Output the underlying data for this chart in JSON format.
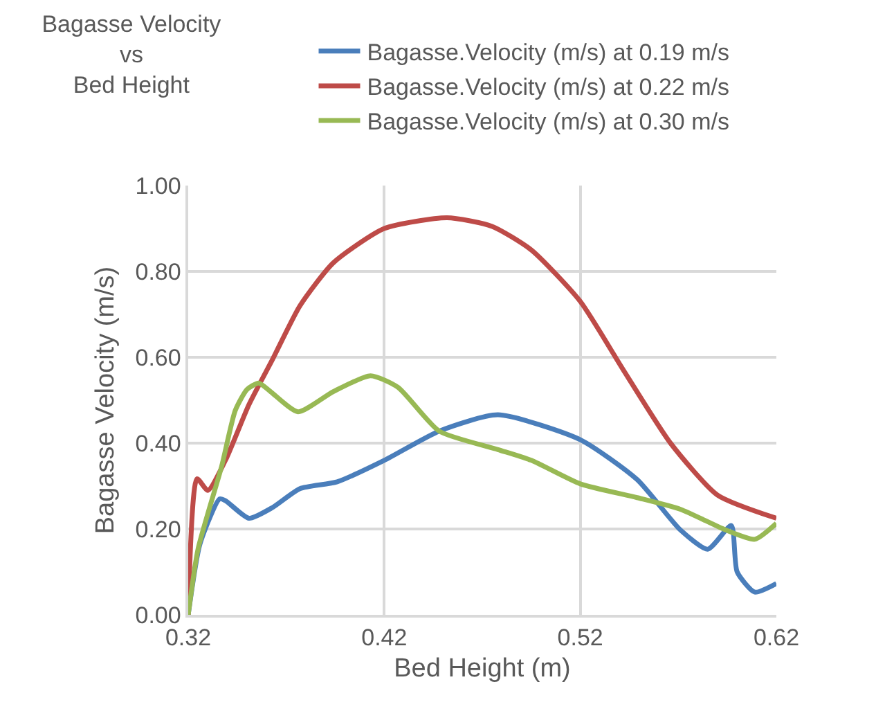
{
  "chart_data": {
    "type": "line",
    "title": "Bagasse Velocity\nvs\nBed Height",
    "xlabel": "Bed Height (m)",
    "ylabel": "Bagasse Velocity (m/s)",
    "xlim": [
      0.32,
      0.62
    ],
    "xticks": [
      0.32,
      0.42,
      0.52,
      0.62
    ],
    "ylim": [
      0,
      1
    ],
    "yticks": [
      {
        "value": 0,
        "label": "0.00"
      },
      {
        "value": 0.2,
        "label": "0.20"
      },
      {
        "value": 0.4,
        "label": "0.40"
      },
      {
        "value": 0.6,
        "label": "0.60"
      },
      {
        "value": 0.8,
        "label": "0.80"
      },
      {
        "value": 1,
        "label": "1.00"
      }
    ],
    "grid": true,
    "legend": "top right",
    "marker": "none",
    "line_style": "solid",
    "series": [
      {
        "name": "Bagasse.Velocity (m/s) at 0.19 m/s",
        "color": "#4a7ebb",
        "x": [
          0.32,
          0.326,
          0.336,
          0.339,
          0.351,
          0.363,
          0.377,
          0.396,
          0.42,
          0.448,
          0.478,
          0.52,
          0.549,
          0.571,
          0.585,
          0.597,
          0.6,
          0.609,
          0.62
        ],
        "values": [
          0,
          0.165,
          0.27,
          0.266,
          0.225,
          0.25,
          0.294,
          0.31,
          0.36,
          0.428,
          0.466,
          0.408,
          0.315,
          0.198,
          0.153,
          0.208,
          0.1,
          0.053,
          0.073
        ]
      },
      {
        "name": "Bagasse.Velocity (m/s) at 0.22 m/s",
        "color": "#be4b48",
        "x": [
          0.32,
          0.3245,
          0.33,
          0.339,
          0.351,
          0.363,
          0.377,
          0.394,
          0.42,
          0.452,
          0.475,
          0.495,
          0.52,
          0.542,
          0.566,
          0.59,
          0.62
        ],
        "values": [
          0,
          0.317,
          0.29,
          0.36,
          0.49,
          0.595,
          0.72,
          0.82,
          0.9,
          0.925,
          0.905,
          0.85,
          0.73,
          0.57,
          0.4,
          0.279,
          0.225
        ]
      },
      {
        "name": "Bagasse.Velocity (m/s) at 0.30 m/s",
        "color": "#98b954",
        "x": [
          0.32,
          0.325,
          0.337,
          0.344,
          0.35,
          0.356,
          0.362,
          0.376,
          0.394,
          0.413,
          0.427,
          0.448,
          0.478,
          0.495,
          0.52,
          0.549,
          0.571,
          0.594,
          0.609,
          0.62
        ],
        "values": [
          0,
          0.153,
          0.345,
          0.476,
          0.525,
          0.54,
          0.52,
          0.473,
          0.52,
          0.557,
          0.53,
          0.428,
          0.385,
          0.36,
          0.305,
          0.273,
          0.246,
          0.198,
          0.176,
          0.213
        ]
      }
    ]
  }
}
